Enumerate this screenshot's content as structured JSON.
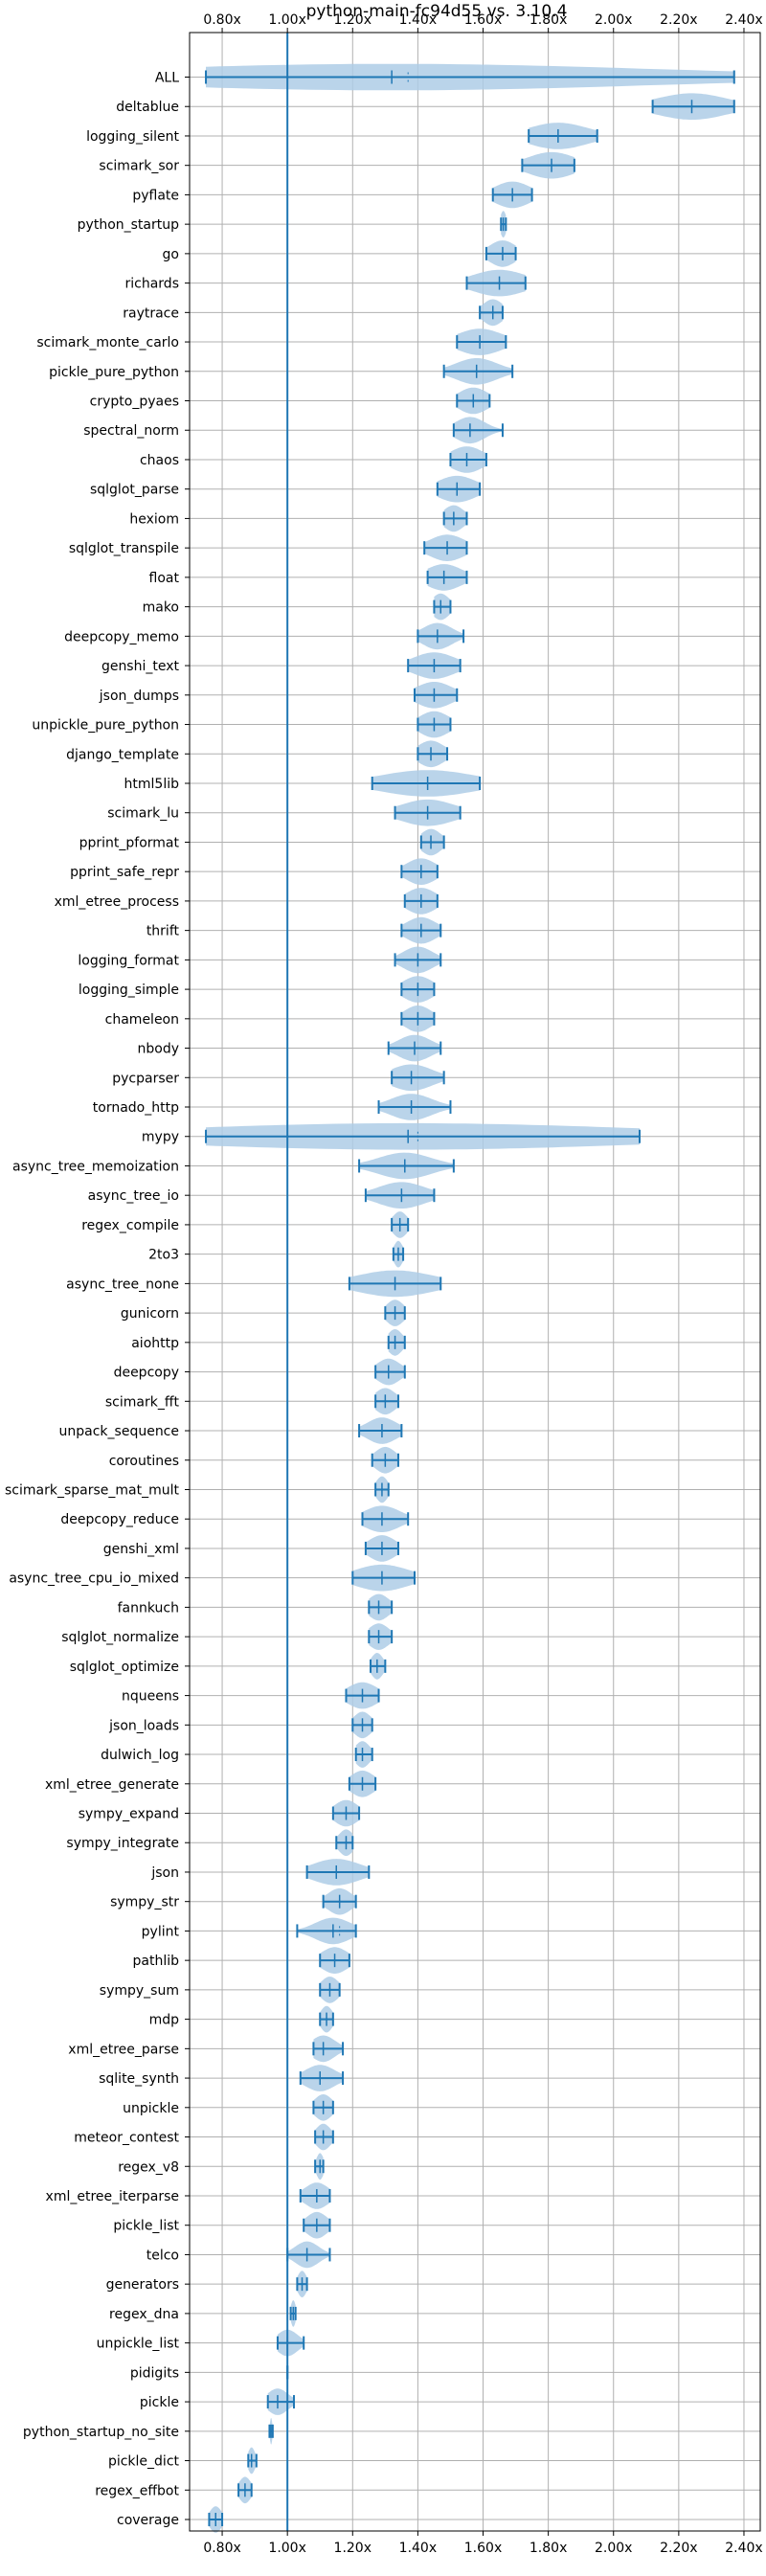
{
  "chart_data": {
    "type": "violin",
    "title": "python-main-fc94d55 vs. 3.10.4",
    "xlabel": "",
    "ylabel": "",
    "xlim": [
      0.7,
      2.45
    ],
    "x_ticks": [
      0.8,
      1.0,
      1.2,
      1.4,
      1.6,
      1.8,
      2.0,
      2.2,
      2.4
    ],
    "x_tick_labels": [
      "0.80x",
      "1.00x",
      "1.20x",
      "1.40x",
      "1.60x",
      "1.80x",
      "2.00x",
      "2.20x",
      "2.40x"
    ],
    "reference_line": 1.0,
    "grid": true,
    "violin_color": "#aecde6",
    "line_color": "#1f77b4",
    "benchmarks": [
      {
        "name": "ALL",
        "min": 0.75,
        "max": 2.37,
        "median": 1.32,
        "mean": 1.37,
        "spread": 0.9
      },
      {
        "name": "deltablue",
        "min": 2.12,
        "max": 2.37,
        "median": 2.24,
        "mean": 2.24,
        "spread": 0.12
      },
      {
        "name": "logging_silent",
        "min": 1.74,
        "max": 1.95,
        "median": 1.83,
        "mean": 1.83,
        "spread": 0.1
      },
      {
        "name": "scimark_sor",
        "min": 1.72,
        "max": 1.88,
        "median": 1.81,
        "mean": 1.81,
        "spread": 0.08
      },
      {
        "name": "pyflate",
        "min": 1.63,
        "max": 1.75,
        "median": 1.69,
        "mean": 1.69,
        "spread": 0.06
      },
      {
        "name": "python_startup",
        "min": 1.655,
        "max": 1.67,
        "median": 1.662,
        "mean": 1.662,
        "spread": 0.01
      },
      {
        "name": "go",
        "min": 1.61,
        "max": 1.7,
        "median": 1.66,
        "mean": 1.66,
        "spread": 0.045
      },
      {
        "name": "richards",
        "min": 1.55,
        "max": 1.73,
        "median": 1.65,
        "mean": 1.65,
        "spread": 0.09
      },
      {
        "name": "raytrace",
        "min": 1.59,
        "max": 1.66,
        "median": 1.63,
        "mean": 1.63,
        "spread": 0.035
      },
      {
        "name": "scimark_monte_carlo",
        "min": 1.52,
        "max": 1.67,
        "median": 1.59,
        "mean": 1.59,
        "spread": 0.075
      },
      {
        "name": "pickle_pure_python",
        "min": 1.48,
        "max": 1.69,
        "median": 1.58,
        "mean": 1.58,
        "spread": 0.07
      },
      {
        "name": "crypto_pyaes",
        "min": 1.52,
        "max": 1.62,
        "median": 1.57,
        "mean": 1.57,
        "spread": 0.05
      },
      {
        "name": "spectral_norm",
        "min": 1.51,
        "max": 1.66,
        "median": 1.56,
        "mean": 1.56,
        "spread": 0.05
      },
      {
        "name": "chaos",
        "min": 1.5,
        "max": 1.61,
        "median": 1.55,
        "mean": 1.55,
        "spread": 0.055
      },
      {
        "name": "sqlglot_parse",
        "min": 1.46,
        "max": 1.59,
        "median": 1.52,
        "mean": 1.52,
        "spread": 0.065
      },
      {
        "name": "hexiom",
        "min": 1.48,
        "max": 1.55,
        "median": 1.51,
        "mean": 1.51,
        "spread": 0.035
      },
      {
        "name": "sqlglot_transpile",
        "min": 1.42,
        "max": 1.55,
        "median": 1.49,
        "mean": 1.49,
        "spread": 0.06
      },
      {
        "name": "float",
        "min": 1.43,
        "max": 1.55,
        "median": 1.48,
        "mean": 1.48,
        "spread": 0.06
      },
      {
        "name": "mako",
        "min": 1.45,
        "max": 1.5,
        "median": 1.47,
        "mean": 1.47,
        "spread": 0.03
      },
      {
        "name": "deepcopy_memo",
        "min": 1.4,
        "max": 1.54,
        "median": 1.46,
        "mean": 1.46,
        "spread": 0.05
      },
      {
        "name": "genshi_text",
        "min": 1.37,
        "max": 1.53,
        "median": 1.45,
        "mean": 1.45,
        "spread": 0.07
      },
      {
        "name": "json_dumps",
        "min": 1.39,
        "max": 1.52,
        "median": 1.45,
        "mean": 1.45,
        "spread": 0.06
      },
      {
        "name": "unpickle_pure_python",
        "min": 1.4,
        "max": 1.5,
        "median": 1.45,
        "mean": 1.45,
        "spread": 0.05
      },
      {
        "name": "django_template",
        "min": 1.4,
        "max": 1.49,
        "median": 1.44,
        "mean": 1.44,
        "spread": 0.045
      },
      {
        "name": "html5lib",
        "min": 1.26,
        "max": 1.59,
        "median": 1.43,
        "mean": 1.43,
        "spread": 0.16
      },
      {
        "name": "scimark_lu",
        "min": 1.33,
        "max": 1.53,
        "median": 1.43,
        "mean": 1.43,
        "spread": 0.09
      },
      {
        "name": "pprint_pformat",
        "min": 1.41,
        "max": 1.48,
        "median": 1.44,
        "mean": 1.44,
        "spread": 0.035
      },
      {
        "name": "pprint_safe_repr",
        "min": 1.35,
        "max": 1.46,
        "median": 1.41,
        "mean": 1.41,
        "spread": 0.05
      },
      {
        "name": "xml_etree_process",
        "min": 1.36,
        "max": 1.46,
        "median": 1.41,
        "mean": 1.41,
        "spread": 0.05
      },
      {
        "name": "thrift",
        "min": 1.35,
        "max": 1.47,
        "median": 1.41,
        "mean": 1.41,
        "spread": 0.05
      },
      {
        "name": "logging_format",
        "min": 1.33,
        "max": 1.47,
        "median": 1.4,
        "mean": 1.4,
        "spread": 0.05
      },
      {
        "name": "logging_simple",
        "min": 1.35,
        "max": 1.45,
        "median": 1.4,
        "mean": 1.4,
        "spread": 0.05
      },
      {
        "name": "chameleon",
        "min": 1.35,
        "max": 1.45,
        "median": 1.4,
        "mean": 1.4,
        "spread": 0.045
      },
      {
        "name": "nbody",
        "min": 1.31,
        "max": 1.47,
        "median": 1.39,
        "mean": 1.39,
        "spread": 0.055
      },
      {
        "name": "pycparser",
        "min": 1.32,
        "max": 1.48,
        "median": 1.38,
        "mean": 1.38,
        "spread": 0.07
      },
      {
        "name": "tornado_http",
        "min": 1.28,
        "max": 1.5,
        "median": 1.38,
        "mean": 1.38,
        "spread": 0.07
      },
      {
        "name": "mypy",
        "min": 0.75,
        "max": 2.08,
        "median": 1.37,
        "mean": 1.4,
        "spread": 0.8
      },
      {
        "name": "async_tree_memoization",
        "min": 1.22,
        "max": 1.51,
        "median": 1.36,
        "mean": 1.36,
        "spread": 0.09
      },
      {
        "name": "async_tree_io",
        "min": 1.24,
        "max": 1.45,
        "median": 1.35,
        "mean": 1.35,
        "spread": 0.08
      },
      {
        "name": "regex_compile",
        "min": 1.32,
        "max": 1.37,
        "median": 1.345,
        "mean": 1.345,
        "spread": 0.025
      },
      {
        "name": "2to3",
        "min": 1.325,
        "max": 1.355,
        "median": 1.34,
        "mean": 1.34,
        "spread": 0.015
      },
      {
        "name": "async_tree_none",
        "min": 1.19,
        "max": 1.47,
        "median": 1.33,
        "mean": 1.33,
        "spread": 0.13
      },
      {
        "name": "gunicorn",
        "min": 1.3,
        "max": 1.36,
        "median": 1.33,
        "mean": 1.33,
        "spread": 0.03
      },
      {
        "name": "aiohttp",
        "min": 1.31,
        "max": 1.36,
        "median": 1.33,
        "mean": 1.33,
        "spread": 0.025
      },
      {
        "name": "deepcopy",
        "min": 1.27,
        "max": 1.36,
        "median": 1.31,
        "mean": 1.31,
        "spread": 0.04
      },
      {
        "name": "scimark_fft",
        "min": 1.27,
        "max": 1.34,
        "median": 1.3,
        "mean": 1.3,
        "spread": 0.035
      },
      {
        "name": "unpack_sequence",
        "min": 1.22,
        "max": 1.35,
        "median": 1.29,
        "mean": 1.29,
        "spread": 0.05
      },
      {
        "name": "coroutines",
        "min": 1.26,
        "max": 1.34,
        "median": 1.3,
        "mean": 1.3,
        "spread": 0.035
      },
      {
        "name": "scimark_sparse_mat_mult",
        "min": 1.27,
        "max": 1.31,
        "median": 1.29,
        "mean": 1.29,
        "spread": 0.02
      },
      {
        "name": "deepcopy_reduce",
        "min": 1.23,
        "max": 1.37,
        "median": 1.29,
        "mean": 1.29,
        "spread": 0.06
      },
      {
        "name": "genshi_xml",
        "min": 1.24,
        "max": 1.34,
        "median": 1.29,
        "mean": 1.29,
        "spread": 0.045
      },
      {
        "name": "async_tree_cpu_io_mixed",
        "min": 1.2,
        "max": 1.39,
        "median": 1.29,
        "mean": 1.29,
        "spread": 0.09
      },
      {
        "name": "fannkuch",
        "min": 1.25,
        "max": 1.32,
        "median": 1.28,
        "mean": 1.28,
        "spread": 0.035
      },
      {
        "name": "sqlglot_normalize",
        "min": 1.25,
        "max": 1.32,
        "median": 1.28,
        "mean": 1.28,
        "spread": 0.035
      },
      {
        "name": "sqlglot_optimize",
        "min": 1.255,
        "max": 1.3,
        "median": 1.275,
        "mean": 1.275,
        "spread": 0.02
      },
      {
        "name": "nqueens",
        "min": 1.18,
        "max": 1.28,
        "median": 1.23,
        "mean": 1.23,
        "spread": 0.05
      },
      {
        "name": "json_loads",
        "min": 1.2,
        "max": 1.26,
        "median": 1.23,
        "mean": 1.23,
        "spread": 0.03
      },
      {
        "name": "dulwich_log",
        "min": 1.21,
        "max": 1.26,
        "median": 1.23,
        "mean": 1.23,
        "spread": 0.025
      },
      {
        "name": "xml_etree_generate",
        "min": 1.19,
        "max": 1.27,
        "median": 1.23,
        "mean": 1.23,
        "spread": 0.04
      },
      {
        "name": "sympy_expand",
        "min": 1.14,
        "max": 1.22,
        "median": 1.18,
        "mean": 1.18,
        "spread": 0.04
      },
      {
        "name": "sympy_integrate",
        "min": 1.15,
        "max": 1.2,
        "median": 1.18,
        "mean": 1.18,
        "spread": 0.025
      },
      {
        "name": "json",
        "min": 1.06,
        "max": 1.25,
        "median": 1.15,
        "mean": 1.15,
        "spread": 0.08
      },
      {
        "name": "sympy_str",
        "min": 1.11,
        "max": 1.21,
        "median": 1.16,
        "mean": 1.16,
        "spread": 0.04
      },
      {
        "name": "pylint",
        "min": 1.03,
        "max": 1.21,
        "median": 1.14,
        "mean": 1.16,
        "spread": 0.06
      },
      {
        "name": "pathlib",
        "min": 1.1,
        "max": 1.19,
        "median": 1.145,
        "mean": 1.145,
        "spread": 0.045
      },
      {
        "name": "sympy_sum",
        "min": 1.1,
        "max": 1.16,
        "median": 1.13,
        "mean": 1.13,
        "spread": 0.03
      },
      {
        "name": "mdp",
        "min": 1.1,
        "max": 1.14,
        "median": 1.12,
        "mean": 1.12,
        "spread": 0.02
      },
      {
        "name": "xml_etree_parse",
        "min": 1.08,
        "max": 1.17,
        "median": 1.11,
        "mean": 1.11,
        "spread": 0.04
      },
      {
        "name": "sqlite_synth",
        "min": 1.04,
        "max": 1.17,
        "median": 1.1,
        "mean": 1.1,
        "spread": 0.05
      },
      {
        "name": "unpickle",
        "min": 1.08,
        "max": 1.14,
        "median": 1.11,
        "mean": 1.11,
        "spread": 0.03
      },
      {
        "name": "meteor_contest",
        "min": 1.085,
        "max": 1.14,
        "median": 1.11,
        "mean": 1.11,
        "spread": 0.025
      },
      {
        "name": "regex_v8",
        "min": 1.085,
        "max": 1.11,
        "median": 1.1,
        "mean": 1.1,
        "spread": 0.012
      },
      {
        "name": "xml_etree_iterparse",
        "min": 1.04,
        "max": 1.13,
        "median": 1.09,
        "mean": 1.09,
        "spread": 0.04
      },
      {
        "name": "pickle_list",
        "min": 1.05,
        "max": 1.13,
        "median": 1.09,
        "mean": 1.09,
        "spread": 0.035
      },
      {
        "name": "telco",
        "min": 1.0,
        "max": 1.13,
        "median": 1.06,
        "mean": 1.06,
        "spread": 0.04
      },
      {
        "name": "generators",
        "min": 1.03,
        "max": 1.06,
        "median": 1.045,
        "mean": 1.045,
        "spread": 0.015
      },
      {
        "name": "regex_dna",
        "min": 1.01,
        "max": 1.025,
        "median": 1.018,
        "mean": 1.018,
        "spread": 0.008
      },
      {
        "name": "unpickle_list",
        "min": 0.97,
        "max": 1.05,
        "median": 1.0,
        "mean": 1.0,
        "spread": 0.035
      },
      {
        "name": "pidigits",
        "min": 1.0,
        "max": 1.0,
        "median": 1.0,
        "mean": 1.0,
        "spread": 0.002
      },
      {
        "name": "pickle",
        "min": 0.94,
        "max": 1.02,
        "median": 0.97,
        "mean": 0.97,
        "spread": 0.035
      },
      {
        "name": "python_startup_no_site",
        "min": 0.945,
        "max": 0.955,
        "median": 0.95,
        "mean": 0.95,
        "spread": 0.004
      },
      {
        "name": "pickle_dict",
        "min": 0.88,
        "max": 0.905,
        "median": 0.89,
        "mean": 0.89,
        "spread": 0.012
      },
      {
        "name": "regex_effbot",
        "min": 0.85,
        "max": 0.89,
        "median": 0.87,
        "mean": 0.87,
        "spread": 0.02
      },
      {
        "name": "coverage",
        "min": 0.76,
        "max": 0.8,
        "median": 0.78,
        "mean": 0.78,
        "spread": 0.02
      }
    ]
  }
}
